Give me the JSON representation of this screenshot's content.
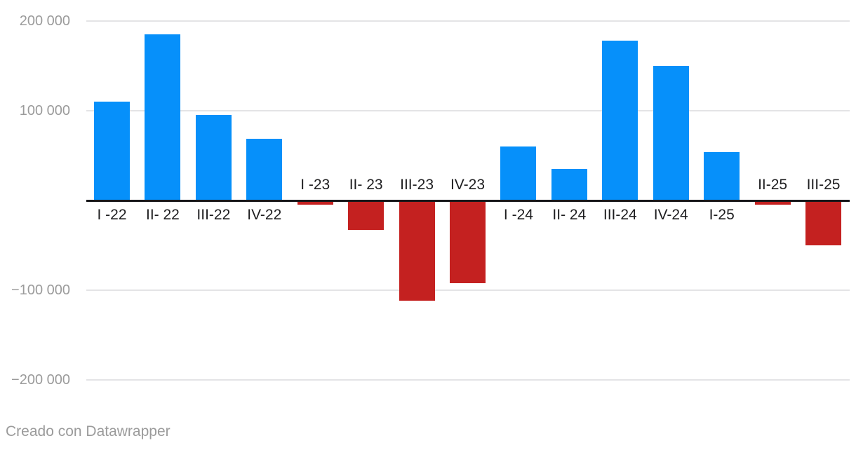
{
  "chart_data": {
    "type": "bar",
    "title": "",
    "xlabel": "",
    "ylabel": "",
    "categories": [
      "I -22",
      "II- 22",
      "III-22",
      "IV-22",
      "I -23",
      "II- 23",
      "III-23",
      "IV-23",
      "I -24",
      "II- 24",
      "III-24",
      "IV-24",
      "I-25",
      "II-25",
      "III-25"
    ],
    "values": [
      110000,
      185000,
      95000,
      69000,
      -5000,
      -33000,
      -112000,
      -92000,
      60000,
      35000,
      178000,
      150000,
      54000,
      -5000,
      -50000
    ],
    "ylim": [
      -200000,
      200000
    ],
    "yticks": [
      {
        "label": "200 000",
        "value": 200000
      },
      {
        "label": "100 000",
        "value": 100000
      },
      {
        "label": "−100 000",
        "value": -100000
      },
      {
        "label": "−200 000",
        "value": -200000
      }
    ],
    "grid": true,
    "legend_position": "none",
    "colors": {
      "positive": "#0690fa",
      "negative": "#c42120",
      "gridline": "#e4e4e6",
      "zero_axis": "#17171a",
      "y_tick_text": "#9b9b9b",
      "x_tick_text": "#1d1d1f"
    }
  },
  "footer": {
    "credit": "Creado con Datawrapper"
  }
}
